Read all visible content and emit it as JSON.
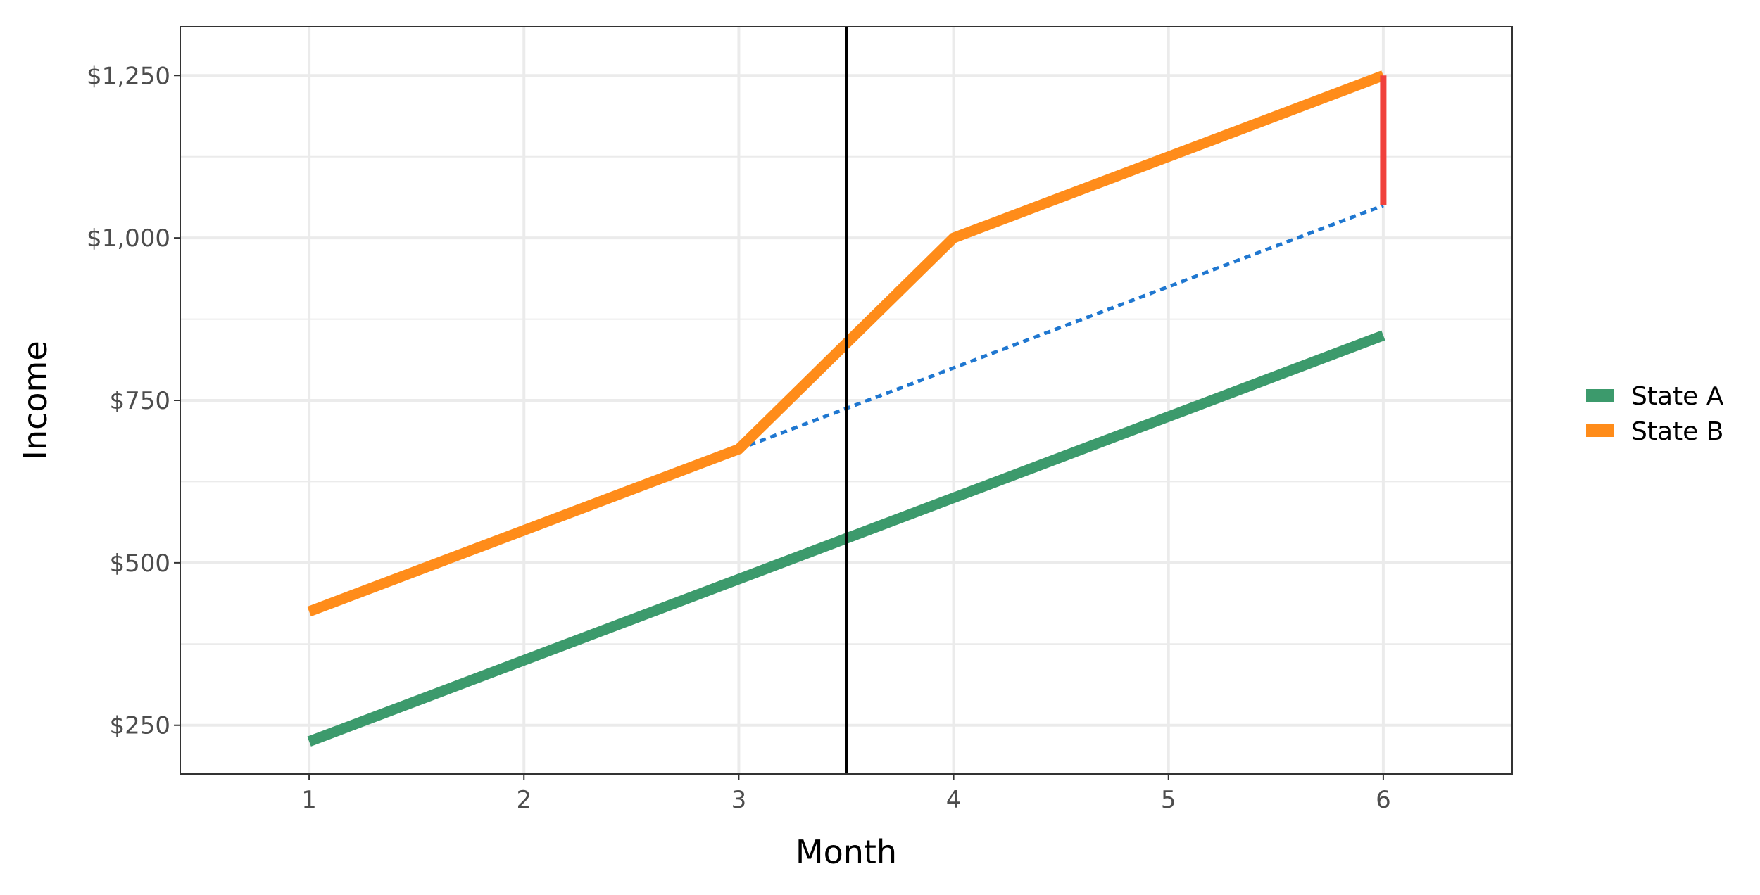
{
  "chart_data": {
    "type": "line",
    "title": "",
    "xlabel": "Month",
    "ylabel": "Income",
    "x": [
      1,
      2,
      3,
      4,
      5,
      6
    ],
    "x_tick_labels": [
      "1",
      "2",
      "3",
      "4",
      "5",
      "6"
    ],
    "xlim": [
      0.4,
      6.6
    ],
    "ylim": [
      175,
      1325
    ],
    "y_ticks": [
      250,
      500,
      750,
      1000,
      1250
    ],
    "y_tick_labels": [
      "$250",
      "$500",
      "$750",
      "$1,000",
      "$1,250"
    ],
    "y_minor_ticks": [
      375,
      625,
      875,
      1125
    ],
    "grid": true,
    "legend_position": "right",
    "series": [
      {
        "name": "State A",
        "color": "#3c9a6c",
        "x": [
          1,
          2,
          3,
          4,
          5,
          6
        ],
        "values": [
          225,
          350,
          475,
          600,
          725,
          850
        ]
      },
      {
        "name": "State B",
        "color": "#ff8c1a",
        "x": [
          1,
          3,
          4,
          6
        ],
        "values": [
          425,
          675,
          1000,
          1250
        ]
      }
    ],
    "annotations": {
      "treatment_line": {
        "x": 3.5,
        "color": "#000000"
      },
      "counterfactual": {
        "x": [
          3,
          6
        ],
        "values": [
          675,
          1050
        ],
        "color": "#1f77d0",
        "style": "dotted"
      },
      "effect_segment": {
        "x": 6,
        "from": 1050,
        "to": 1250,
        "color": "#f0413c"
      }
    }
  }
}
